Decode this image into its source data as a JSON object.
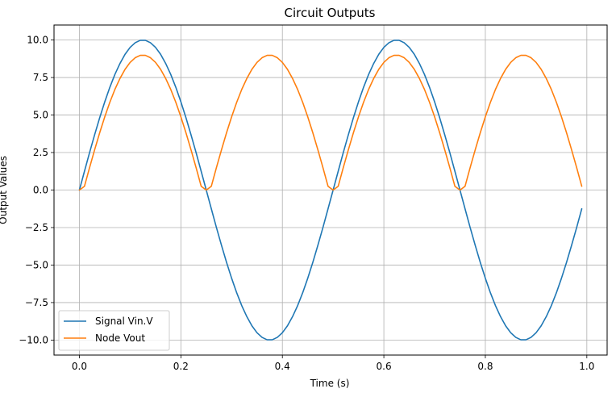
{
  "chart_data": {
    "type": "line",
    "title": "Circuit Outputs",
    "xlabel": "Time (s)",
    "ylabel": "Output Values",
    "xlim": [
      -0.05,
      1.04
    ],
    "ylim": [
      -11.0,
      11.0
    ],
    "grid": true,
    "legend_position": "lower-left",
    "x_ticks": [
      0.0,
      0.2,
      0.4,
      0.6,
      0.8,
      1.0
    ],
    "x_tick_labels": [
      "0.0",
      "0.2",
      "0.4",
      "0.6",
      "0.8",
      "1.0"
    ],
    "y_ticks": [
      -10.0,
      -7.5,
      -5.0,
      -2.5,
      0.0,
      2.5,
      5.0,
      7.5,
      10.0
    ],
    "y_tick_labels": [
      "−10.0",
      "−7.5",
      "−5.0",
      "−2.5",
      "0.0",
      "2.5",
      "5.0",
      "7.5",
      "10.0"
    ],
    "x": [
      0.0,
      0.01,
      0.02,
      0.03,
      0.04,
      0.05,
      0.06,
      0.07,
      0.08,
      0.09,
      0.1,
      0.11,
      0.12,
      0.13,
      0.14,
      0.15,
      0.16,
      0.17,
      0.18,
      0.19,
      0.2,
      0.21,
      0.22,
      0.23,
      0.24,
      0.25,
      0.26,
      0.27,
      0.28,
      0.29,
      0.3,
      0.31,
      0.32,
      0.33,
      0.34,
      0.35,
      0.36,
      0.37,
      0.38,
      0.39,
      0.4,
      0.41,
      0.42,
      0.43,
      0.44,
      0.45,
      0.46,
      0.47,
      0.48,
      0.49,
      0.5,
      0.51,
      0.52,
      0.53,
      0.54,
      0.55,
      0.56,
      0.57,
      0.58,
      0.59,
      0.6,
      0.61,
      0.62,
      0.63,
      0.64,
      0.65,
      0.66,
      0.67,
      0.68,
      0.69,
      0.7,
      0.71,
      0.72,
      0.73,
      0.74,
      0.75,
      0.76,
      0.77,
      0.78,
      0.79,
      0.8,
      0.81,
      0.82,
      0.83,
      0.84,
      0.85,
      0.86,
      0.87,
      0.88,
      0.89,
      0.9,
      0.91,
      0.92,
      0.93,
      0.94,
      0.95,
      0.96,
      0.97,
      0.98,
      0.99
    ],
    "series": [
      {
        "name": "Signal Vin.V",
        "color": "#1f77b4",
        "values": [
          0.0,
          1.25,
          2.49,
          3.68,
          4.82,
          5.88,
          6.85,
          7.71,
          8.44,
          9.05,
          9.51,
          9.82,
          9.98,
          9.98,
          9.82,
          9.51,
          9.05,
          8.44,
          7.71,
          6.85,
          5.88,
          4.82,
          3.68,
          2.49,
          1.25,
          0.0,
          -1.25,
          -2.49,
          -3.68,
          -4.82,
          -5.88,
          -6.85,
          -7.71,
          -8.44,
          -9.05,
          -9.51,
          -9.82,
          -9.98,
          -9.98,
          -9.82,
          -9.51,
          -9.05,
          -8.44,
          -7.71,
          -6.85,
          -5.88,
          -4.82,
          -3.68,
          -2.49,
          -1.25,
          0.0,
          1.25,
          2.49,
          3.68,
          4.82,
          5.88,
          6.85,
          7.71,
          8.44,
          9.05,
          9.51,
          9.82,
          9.98,
          9.98,
          9.82,
          9.51,
          9.05,
          8.44,
          7.71,
          6.85,
          5.88,
          4.82,
          3.68,
          2.49,
          1.25,
          0.0,
          -1.25,
          -2.49,
          -3.68,
          -4.82,
          -5.88,
          -6.85,
          -7.71,
          -8.44,
          -9.05,
          -9.51,
          -9.82,
          -9.98,
          -9.98,
          -9.82,
          -9.51,
          -9.05,
          -8.44,
          -7.71,
          -6.85,
          -5.88,
          -4.82,
          -3.68,
          -2.49,
          -1.25
        ]
      },
      {
        "name": "Node Vout",
        "color": "#ff7f0e",
        "values": [
          0.0,
          0.25,
          1.49,
          2.68,
          3.82,
          4.88,
          5.85,
          6.71,
          7.44,
          8.05,
          8.51,
          8.82,
          8.98,
          8.98,
          8.82,
          8.51,
          8.05,
          7.44,
          6.71,
          5.85,
          4.88,
          3.82,
          2.68,
          1.49,
          0.25,
          0.0,
          0.25,
          1.49,
          2.68,
          3.82,
          4.88,
          5.85,
          6.71,
          7.44,
          8.05,
          8.51,
          8.82,
          8.98,
          8.98,
          8.82,
          8.51,
          8.05,
          7.44,
          6.71,
          5.85,
          4.88,
          3.82,
          2.68,
          1.49,
          0.25,
          0.0,
          0.25,
          1.49,
          2.68,
          3.82,
          4.88,
          5.85,
          6.71,
          7.44,
          8.05,
          8.51,
          8.82,
          8.98,
          8.98,
          8.82,
          8.51,
          8.05,
          7.44,
          6.71,
          5.85,
          4.88,
          3.82,
          2.68,
          1.49,
          0.25,
          0.0,
          0.25,
          1.49,
          2.68,
          3.82,
          4.88,
          5.85,
          6.71,
          7.44,
          8.05,
          8.51,
          8.82,
          8.98,
          8.98,
          8.82,
          8.51,
          8.05,
          7.44,
          6.71,
          5.85,
          4.88,
          3.82,
          2.68,
          1.49,
          0.25
        ]
      }
    ]
  }
}
